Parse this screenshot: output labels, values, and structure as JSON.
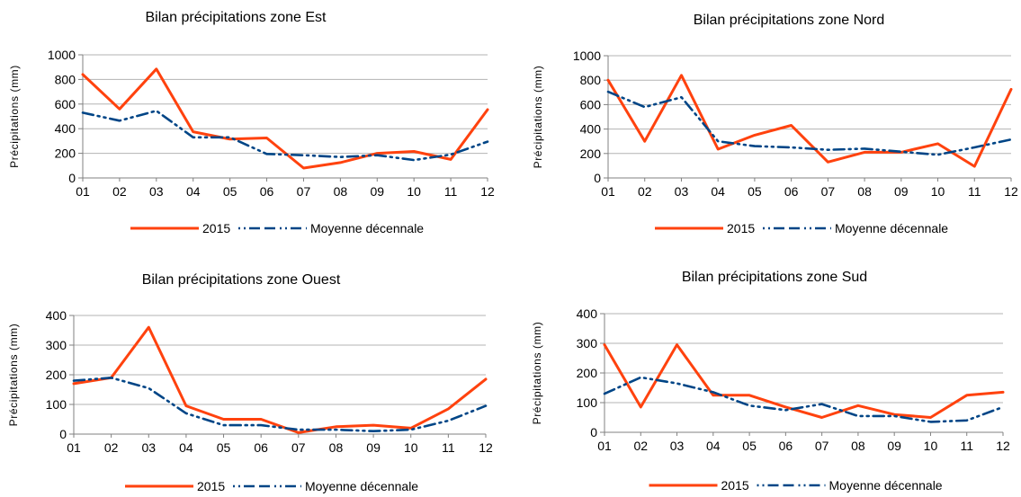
{
  "legend": {
    "series_2015": "2015",
    "series_avg": "Moyenne décennale"
  },
  "colors": {
    "series_2015": "#ff420e",
    "series_avg": "#004586",
    "grid": "#b3b3b3"
  },
  "chart_data": [
    {
      "type": "line",
      "title": "Bilan précipitations zone Est",
      "ylabel": "Précipitations (mm)",
      "categories": [
        "01",
        "02",
        "03",
        "04",
        "05",
        "06",
        "07",
        "08",
        "09",
        "10",
        "11",
        "12"
      ],
      "ylim": [
        0,
        1000
      ],
      "yticks": [
        0,
        200,
        400,
        600,
        800,
        1000
      ],
      "legend_position": "bottom",
      "series": [
        {
          "name": "2015",
          "values": [
            840,
            560,
            885,
            375,
            315,
            325,
            80,
            125,
            200,
            215,
            150,
            555
          ]
        },
        {
          "name": "Moyenne décennale",
          "values": [
            530,
            465,
            545,
            330,
            330,
            195,
            185,
            170,
            185,
            145,
            190,
            295
          ]
        }
      ]
    },
    {
      "type": "line",
      "title": "Bilan précipitations zone Nord",
      "ylabel": "Précipitations (mm)",
      "categories": [
        "01",
        "02",
        "03",
        "04",
        "05",
        "06",
        "07",
        "08",
        "09",
        "10",
        "11",
        "12"
      ],
      "ylim": [
        0,
        1000
      ],
      "yticks": [
        0,
        200,
        400,
        600,
        800,
        1000
      ],
      "legend_position": "bottom",
      "series": [
        {
          "name": "2015",
          "values": [
            800,
            300,
            840,
            235,
            350,
            430,
            130,
            210,
            210,
            280,
            95,
            725
          ]
        },
        {
          "name": "Moyenne décennale",
          "values": [
            705,
            580,
            660,
            300,
            260,
            250,
            230,
            240,
            215,
            190,
            250,
            315
          ]
        }
      ]
    },
    {
      "type": "line",
      "title": "Bilan précipitations zone Ouest",
      "ylabel": "Précipitations (mm)",
      "categories": [
        "01",
        "02",
        "03",
        "04",
        "05",
        "06",
        "07",
        "08",
        "09",
        "10",
        "11",
        "12"
      ],
      "ylim": [
        0,
        400
      ],
      "yticks": [
        0,
        100,
        200,
        300,
        400
      ],
      "legend_position": "bottom",
      "series": [
        {
          "name": "2015",
          "values": [
            170,
            190,
            360,
            95,
            50,
            50,
            5,
            25,
            30,
            20,
            85,
            185
          ]
        },
        {
          "name": "Moyenne décennale",
          "values": [
            180,
            190,
            155,
            70,
            30,
            30,
            15,
            15,
            10,
            15,
            45,
            95
          ]
        }
      ]
    },
    {
      "type": "line",
      "title": "Bilan précipitations zone Sud",
      "ylabel": "Précipitations (mm)",
      "categories": [
        "01",
        "02",
        "03",
        "04",
        "05",
        "06",
        "07",
        "08",
        "09",
        "10",
        "11",
        "12"
      ],
      "ylim": [
        0,
        400
      ],
      "yticks": [
        0,
        100,
        200,
        300,
        400
      ],
      "legend_position": "bottom",
      "series": [
        {
          "name": "2015",
          "values": [
            295,
            85,
            295,
            125,
            125,
            85,
            50,
            90,
            60,
            50,
            125,
            135
          ]
        },
        {
          "name": "Moyenne décennale",
          "values": [
            130,
            185,
            165,
            135,
            90,
            75,
            95,
            55,
            55,
            35,
            40,
            85
          ]
        }
      ]
    }
  ]
}
